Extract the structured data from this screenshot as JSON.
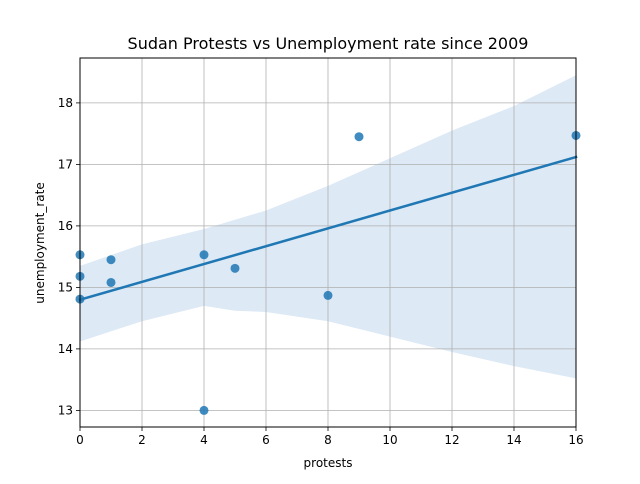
{
  "chart_data": {
    "type": "scatter",
    "title": "Sudan Protests vs Unemployment rate since 2009",
    "xlabel": "protests",
    "ylabel": "unemployment_rate",
    "xlim": [
      0,
      16
    ],
    "ylim": [
      12.73,
      18.73
    ],
    "grid": true,
    "xticks": [
      "0",
      "2",
      "4",
      "6",
      "8",
      "10",
      "12",
      "14",
      "16"
    ],
    "yticks": [
      "13",
      "14",
      "15",
      "16",
      "17",
      "18"
    ],
    "points": [
      {
        "x": 0,
        "y": 15.53
      },
      {
        "x": 0,
        "y": 15.18
      },
      {
        "x": 0,
        "y": 14.81
      },
      {
        "x": 1,
        "y": 15.45
      },
      {
        "x": 1,
        "y": 15.08
      },
      {
        "x": 4,
        "y": 15.53
      },
      {
        "x": 4,
        "y": 13.0
      },
      {
        "x": 5,
        "y": 15.31
      },
      {
        "x": 8,
        "y": 14.87
      },
      {
        "x": 9,
        "y": 17.45
      },
      {
        "x": 16,
        "y": 17.47
      }
    ],
    "regression": {
      "x": [
        0,
        16
      ],
      "y": [
        14.8,
        17.12
      ]
    },
    "confidence_band": {
      "x": [
        0,
        2,
        4,
        5,
        6,
        8,
        10,
        12,
        14,
        16
      ],
      "upper": [
        15.35,
        15.7,
        15.95,
        16.1,
        16.25,
        16.65,
        17.1,
        17.55,
        17.95,
        18.45
      ],
      "lower": [
        14.12,
        14.45,
        14.7,
        14.62,
        14.6,
        14.45,
        14.2,
        13.95,
        13.72,
        13.52
      ]
    },
    "colors": {
      "point": "#1f77b4",
      "line": "#1f77b4",
      "band": "#c6dbef",
      "grid": "#b0b0b0"
    }
  }
}
